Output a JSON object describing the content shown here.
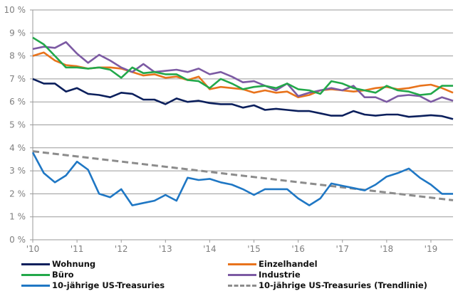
{
  "chart_data": {
    "type": "line",
    "ylim": [
      0,
      10
    ],
    "xlim": [
      2010,
      2019.5
    ],
    "y_ticks": [
      "0 %",
      "1 %",
      "2 %",
      "3 %",
      "4 %",
      "5 %",
      "6 %",
      "7 %",
      "8 %",
      "9 %",
      "10 %"
    ],
    "x_ticks": [
      "'10",
      "'11",
      "'12",
      "'13",
      "'14",
      "'15",
      "'16",
      "'17",
      "'18",
      "'19"
    ],
    "grid": true,
    "legend_placement": "bottom",
    "x": [
      2010,
      2010.25,
      2010.5,
      2010.75,
      2011,
      2011.25,
      2011.5,
      2011.75,
      2012,
      2012.25,
      2012.5,
      2012.75,
      2013,
      2013.25,
      2013.5,
      2013.75,
      2014,
      2014.25,
      2014.5,
      2014.75,
      2015,
      2015.25,
      2015.5,
      2015.75,
      2016,
      2016.25,
      2016.5,
      2016.75,
      2017,
      2017.25,
      2017.5,
      2017.75,
      2018,
      2018.25,
      2018.5,
      2018.75,
      2019,
      2019.25,
      2019.5
    ],
    "series": [
      {
        "name": "Wohnung",
        "color": "#0b1f5c",
        "dashed": false,
        "values": [
          7.0,
          6.8,
          6.8,
          6.45,
          6.6,
          6.35,
          6.3,
          6.2,
          6.4,
          6.35,
          6.1,
          6.1,
          5.9,
          6.15,
          6.0,
          6.05,
          5.95,
          5.9,
          5.9,
          5.75,
          5.85,
          5.65,
          5.7,
          5.65,
          5.6,
          5.6,
          5.5,
          5.4,
          5.4,
          5.6,
          5.45,
          5.4,
          5.45,
          5.45,
          5.35,
          5.38,
          5.42,
          5.38,
          5.25
        ]
      },
      {
        "name": "Einzelhandel",
        "color": "#e8731c",
        "dashed": false,
        "values": [
          8.0,
          8.15,
          7.8,
          7.6,
          7.55,
          7.45,
          7.5,
          7.5,
          7.45,
          7.3,
          7.15,
          7.2,
          7.05,
          7.1,
          6.95,
          7.1,
          6.55,
          6.65,
          6.6,
          6.55,
          6.4,
          6.5,
          6.4,
          6.45,
          6.2,
          6.3,
          6.5,
          6.55,
          6.5,
          6.45,
          6.5,
          6.6,
          6.65,
          6.55,
          6.6,
          6.7,
          6.75,
          6.6,
          6.4
        ]
      },
      {
        "name": "Büro",
        "color": "#22a84a",
        "dashed": false,
        "values": [
          8.8,
          8.5,
          8.0,
          7.5,
          7.5,
          7.45,
          7.5,
          7.4,
          7.05,
          7.5,
          7.25,
          7.3,
          7.2,
          7.2,
          6.95,
          6.9,
          6.6,
          7.0,
          6.8,
          6.55,
          6.65,
          6.7,
          6.6,
          6.8,
          6.55,
          6.5,
          6.35,
          6.9,
          6.8,
          6.6,
          6.5,
          6.4,
          6.7,
          6.5,
          6.45,
          6.3,
          6.35,
          6.7,
          6.7
        ]
      },
      {
        "name": "Industrie",
        "color": "#7c5aa3",
        "dashed": false,
        "values": [
          8.3,
          8.4,
          8.35,
          8.6,
          8.1,
          7.7,
          8.05,
          7.8,
          7.5,
          7.3,
          7.65,
          7.3,
          7.35,
          7.4,
          7.3,
          7.45,
          7.2,
          7.3,
          7.1,
          6.85,
          6.9,
          6.7,
          6.5,
          6.8,
          6.25,
          6.4,
          6.5,
          6.6,
          6.5,
          6.7,
          6.2,
          6.2,
          6.0,
          6.25,
          6.3,
          6.25,
          6.0,
          6.2,
          6.05
        ]
      },
      {
        "name": "10-jährige US-Treasuries",
        "color": "#1f77c4",
        "dashed": false,
        "values": [
          3.8,
          2.9,
          2.5,
          2.8,
          3.4,
          3.05,
          2.0,
          1.85,
          2.2,
          1.5,
          1.6,
          1.7,
          1.95,
          1.7,
          2.7,
          2.6,
          2.65,
          2.5,
          2.4,
          2.2,
          1.95,
          2.2,
          2.2,
          2.2,
          1.8,
          1.5,
          1.8,
          2.45,
          2.35,
          2.25,
          2.15,
          2.4,
          2.75,
          2.9,
          3.1,
          2.7,
          2.4,
          2.0,
          2.0
        ]
      },
      {
        "name": "10-jährige US-Treasuries (Trendlinie)",
        "color": "#8c8c8c",
        "dashed": true,
        "x": [
          2010,
          2019.5
        ],
        "values": [
          3.85,
          1.72
        ]
      }
    ]
  }
}
